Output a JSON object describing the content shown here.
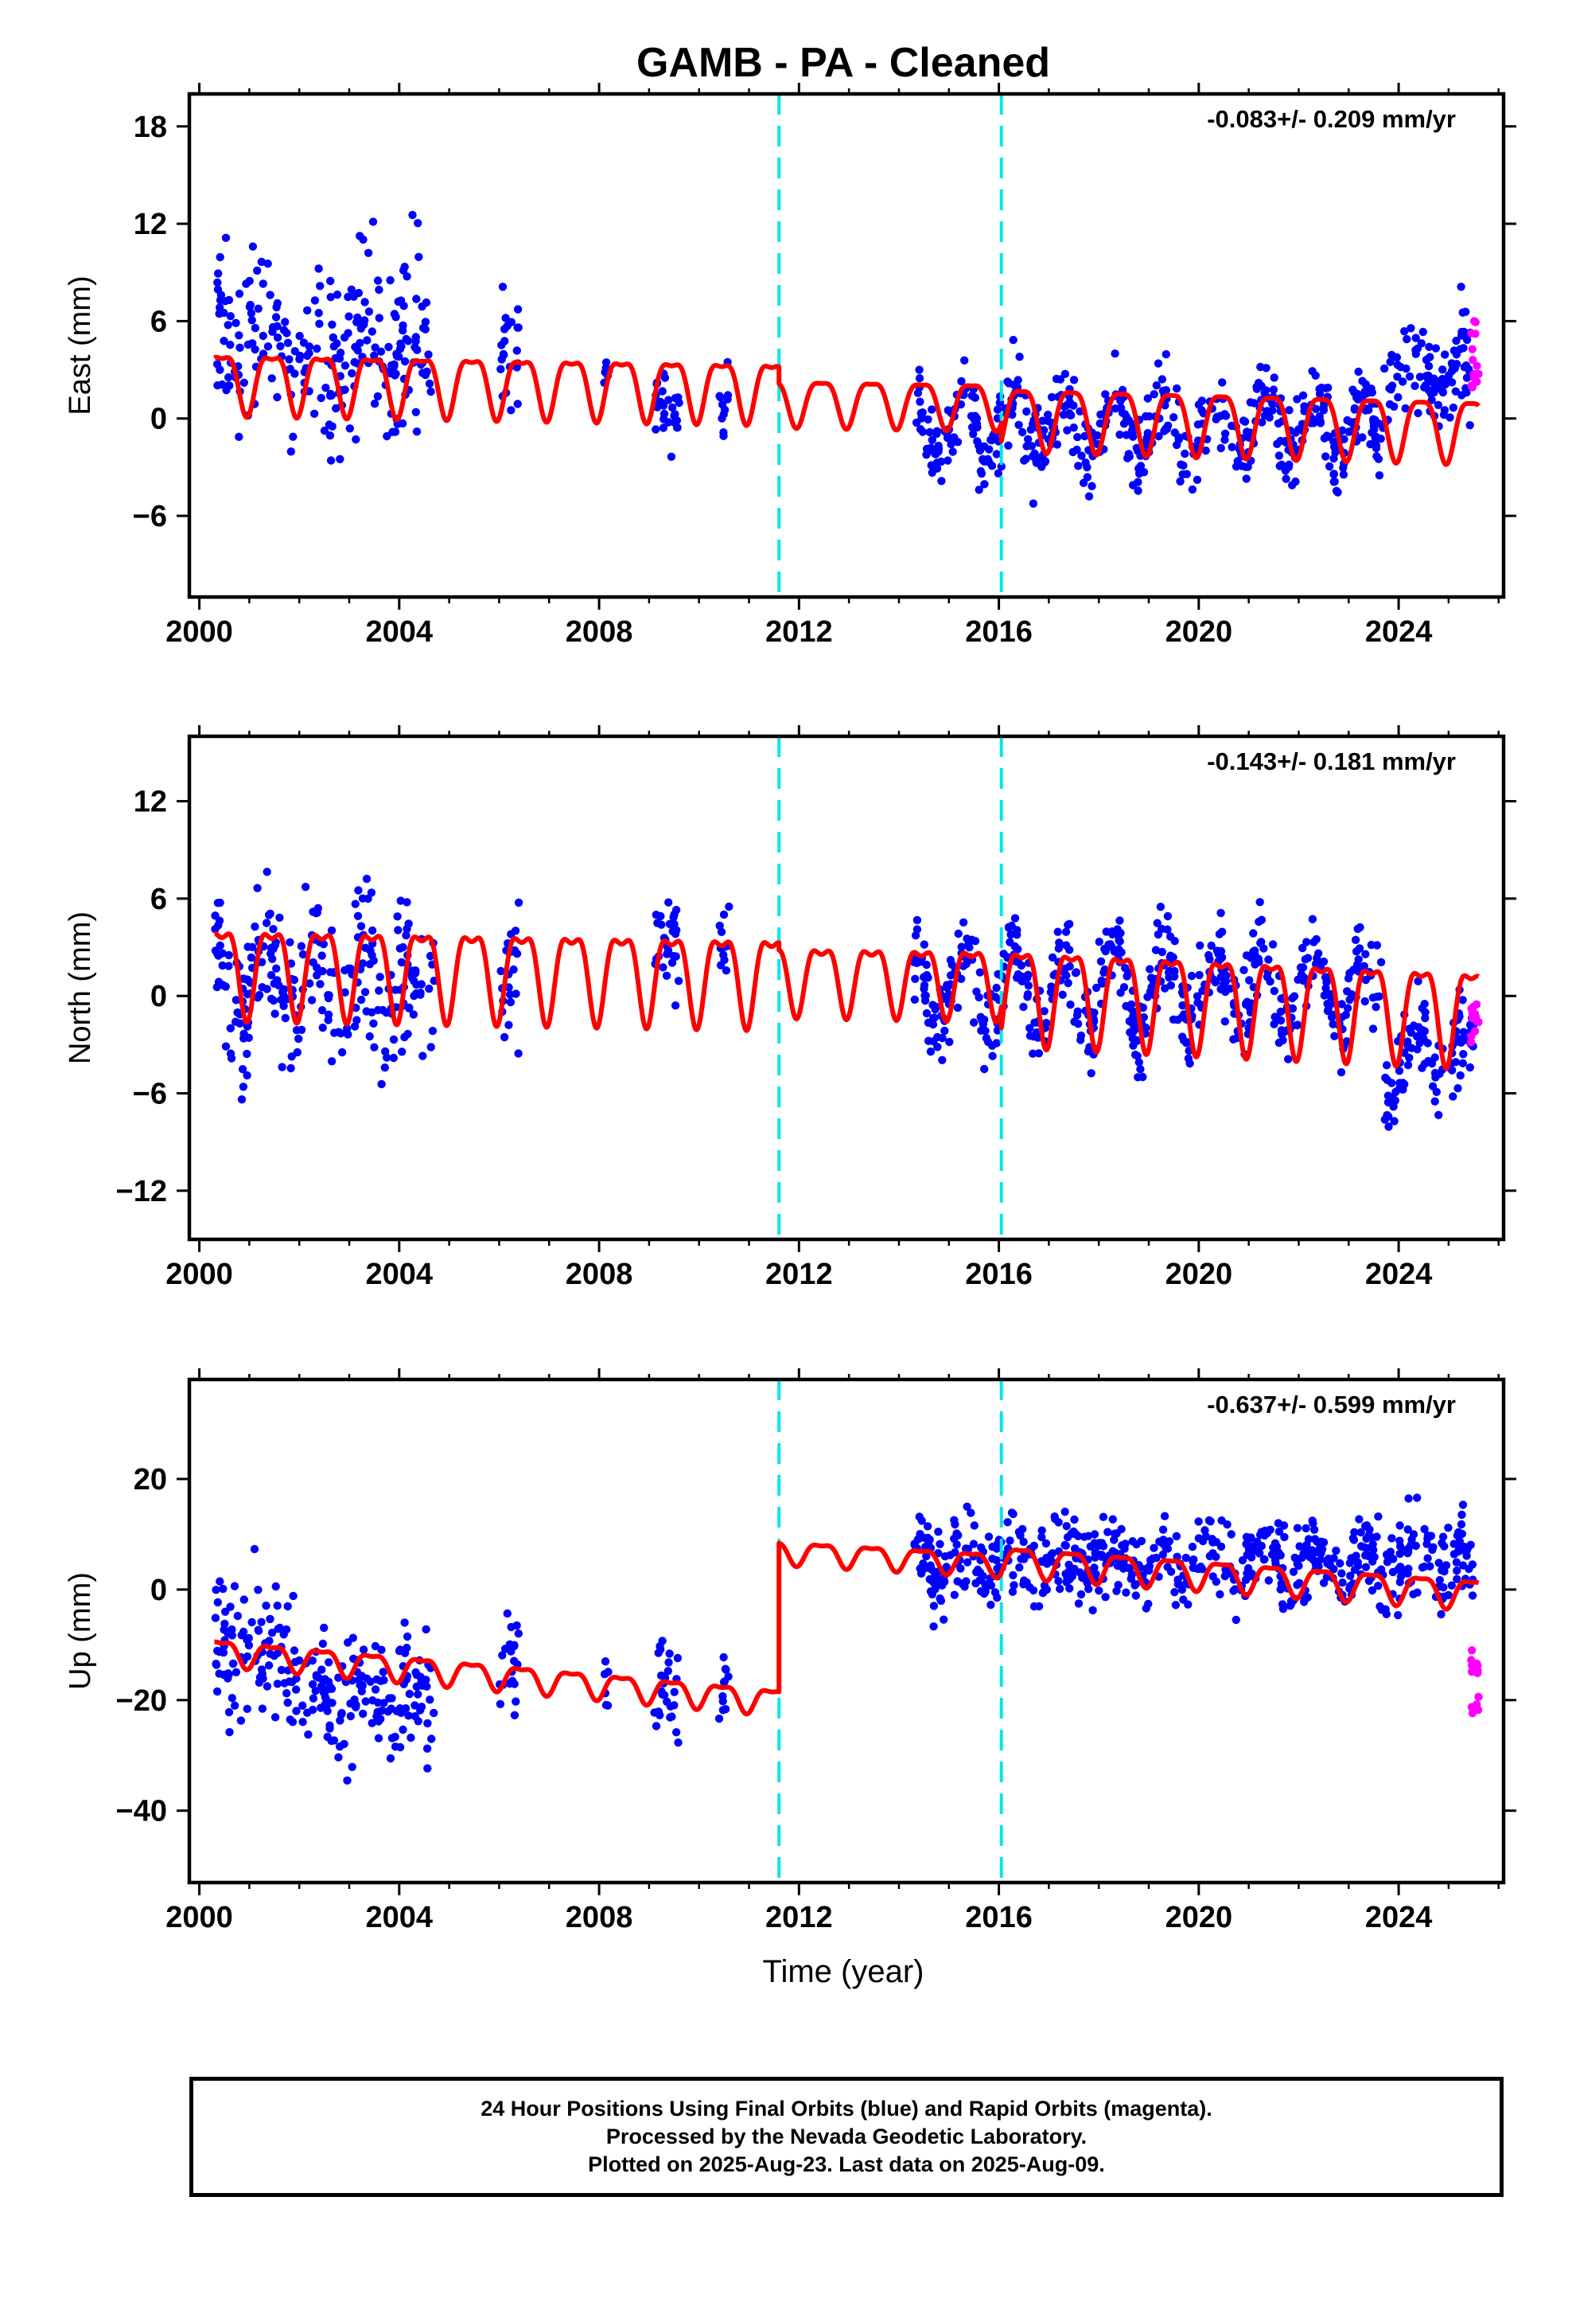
{
  "title": "GAMB  - PA - Cleaned",
  "xlabel": "Time (year)",
  "footer": {
    "line1": "24 Hour Positions Using Final Orbits (blue) and Rapid Orbits (magenta).",
    "line2": "Processed by the Nevada Geodetic Laboratory.",
    "line3": "Plotted on 2025-Aug-23. Last data on 2025-Aug-09."
  },
  "colors": {
    "final": "#0000ff",
    "rapid": "#ff00ff",
    "model": "#ff0000",
    "steps": "#00e5ee"
  },
  "chart_data": [
    {
      "type": "scatter",
      "ylabel": "East (mm)",
      "rate": "-0.083+/- 0.209 mm/yr",
      "xlim": [
        1999.8,
        2026.1
      ],
      "ylim": [
        -11,
        20
      ],
      "xticks": [
        2000,
        2004,
        2008,
        2012,
        2016,
        2020,
        2024
      ],
      "yticks": [
        18,
        12,
        6,
        0,
        -6
      ],
      "steps": [
        2011.6,
        2016.05
      ],
      "model": {
        "pieces": [
          {
            "from": 2000.3,
            "to": 2011.6,
            "start": 2.5,
            "slope": -0.05,
            "annual": 1.8,
            "semi": 0.6
          },
          {
            "from": 2011.6,
            "to": 2016.05,
            "start": 1.2,
            "slope": -0.05,
            "annual": 1.4,
            "semi": 0.4
          },
          {
            "from": 2016.05,
            "to": 2025.6,
            "start": 0.3,
            "slope": -0.083,
            "annual": 1.9,
            "semi": 0.5
          }
        ]
      },
      "data_segments": [
        {
          "from": 2000.3,
          "to": 2004.7,
          "center": 4.5,
          "spread": 3.6,
          "seasonal": 1.5
        },
        {
          "from": 2006.0,
          "to": 2006.4,
          "center": 3.0,
          "spread": 2.6,
          "seasonal": 0.8
        },
        {
          "from": 2008.1,
          "to": 2008.2,
          "center": 2.5,
          "spread": 1.8,
          "seasonal": 0.5
        },
        {
          "from": 2009.1,
          "to": 2009.6,
          "center": 0.5,
          "spread": 2.2,
          "seasonal": 0.8
        },
        {
          "from": 2010.4,
          "to": 2010.6,
          "center": 0.0,
          "spread": 2.0,
          "seasonal": 0.5
        },
        {
          "from": 2014.3,
          "to": 2023.7,
          "center": -0.5,
          "spread": 1.8,
          "seasonal": 1.8
        },
        {
          "from": 2023.7,
          "to": 2025.5,
          "center": 3.0,
          "spread": 2.3,
          "seasonal": 1.0
        }
      ],
      "rapid": {
        "from": 2025.45,
        "to": 2025.6,
        "min": 1.0,
        "max": 6.0
      }
    },
    {
      "type": "scatter",
      "ylabel": "North (mm)",
      "rate": "-0.143+/- 0.181 mm/yr",
      "xlim": [
        1999.8,
        2026.1
      ],
      "ylim": [
        -15,
        16
      ],
      "xticks": [
        2000,
        2004,
        2008,
        2012,
        2016,
        2020,
        2024
      ],
      "yticks": [
        12,
        6,
        0,
        -6,
        -12
      ],
      "steps": [
        2011.6,
        2016.05
      ],
      "model": {
        "pieces": [
          {
            "from": 2000.3,
            "to": 2011.6,
            "start": 2.0,
            "slope": -0.05,
            "annual": 2.6,
            "semi": 1.0
          },
          {
            "from": 2011.6,
            "to": 2016.05,
            "start": 1.4,
            "slope": -0.05,
            "annual": 2.0,
            "semi": 0.8
          },
          {
            "from": 2016.05,
            "to": 2025.6,
            "start": 0.6,
            "slope": -0.143,
            "annual": 2.8,
            "semi": 1.0
          }
        ]
      },
      "data_segments": [
        {
          "from": 2000.3,
          "to": 2004.7,
          "center": 1.0,
          "spread": 3.4,
          "seasonal": 2.0
        },
        {
          "from": 2006.0,
          "to": 2006.4,
          "center": 0.5,
          "spread": 2.5,
          "seasonal": 1.0
        },
        {
          "from": 2009.1,
          "to": 2009.6,
          "center": 3.0,
          "spread": 2.5,
          "seasonal": 1.0
        },
        {
          "from": 2010.4,
          "to": 2010.6,
          "center": 2.5,
          "spread": 2.0,
          "seasonal": 0.5
        },
        {
          "from": 2014.3,
          "to": 2023.7,
          "center": 0.5,
          "spread": 2.0,
          "seasonal": 2.5
        },
        {
          "from": 2023.7,
          "to": 2025.5,
          "center": -4.0,
          "spread": 2.2,
          "seasonal": 1.5
        }
      ],
      "rapid": {
        "from": 2025.45,
        "to": 2025.6,
        "min": -3.0,
        "max": 0.0
      }
    },
    {
      "type": "scatter",
      "ylabel": "Up (mm)",
      "rate": "-0.637+/- 0.599 mm/yr",
      "xlim": [
        1999.8,
        2026.1
      ],
      "ylim": [
        -53,
        38
      ],
      "xticks": [
        2000,
        2004,
        2008,
        2012,
        2016,
        2020,
        2024
      ],
      "yticks": [
        20,
        0,
        -20,
        -40
      ],
      "steps": [
        2011.6,
        2016.05
      ],
      "model": {
        "pieces": [
          {
            "from": 2000.3,
            "to": 2011.6,
            "start": -11.0,
            "slope": -0.8,
            "annual": 2.2,
            "semi": 0.8
          },
          {
            "from": 2011.6,
            "to": 2016.05,
            "start": 7.0,
            "slope": -0.5,
            "annual": 2.0,
            "semi": 0.7
          },
          {
            "from": 2016.05,
            "to": 2025.6,
            "start": 5.5,
            "slope": -0.637,
            "annual": 2.6,
            "semi": 0.8
          }
        ]
      },
      "data_segments": [
        {
          "from": 2000.3,
          "to": 2002.1,
          "center": -10.0,
          "spread": 9.0,
          "seasonal": 3.0
        },
        {
          "from": 2002.1,
          "to": 2004.7,
          "center": -20.0,
          "spread": 8.0,
          "seasonal": 3.0
        },
        {
          "from": 2006.0,
          "to": 2006.4,
          "center": -15.0,
          "spread": 6.0,
          "seasonal": 2.0
        },
        {
          "from": 2008.1,
          "to": 2008.2,
          "center": -18.0,
          "spread": 6.0,
          "seasonal": 1.0
        },
        {
          "from": 2009.1,
          "to": 2009.6,
          "center": -19.0,
          "spread": 6.0,
          "seasonal": 2.0
        },
        {
          "from": 2010.4,
          "to": 2010.6,
          "center": -17.0,
          "spread": 5.0,
          "seasonal": 1.0
        },
        {
          "from": 2014.3,
          "to": 2025.5,
          "center": 5.0,
          "spread": 5.5,
          "seasonal": 2.5
        }
      ],
      "rapid": {
        "from": 2025.45,
        "to": 2025.6,
        "min": -26.0,
        "max": -10.0
      }
    }
  ]
}
